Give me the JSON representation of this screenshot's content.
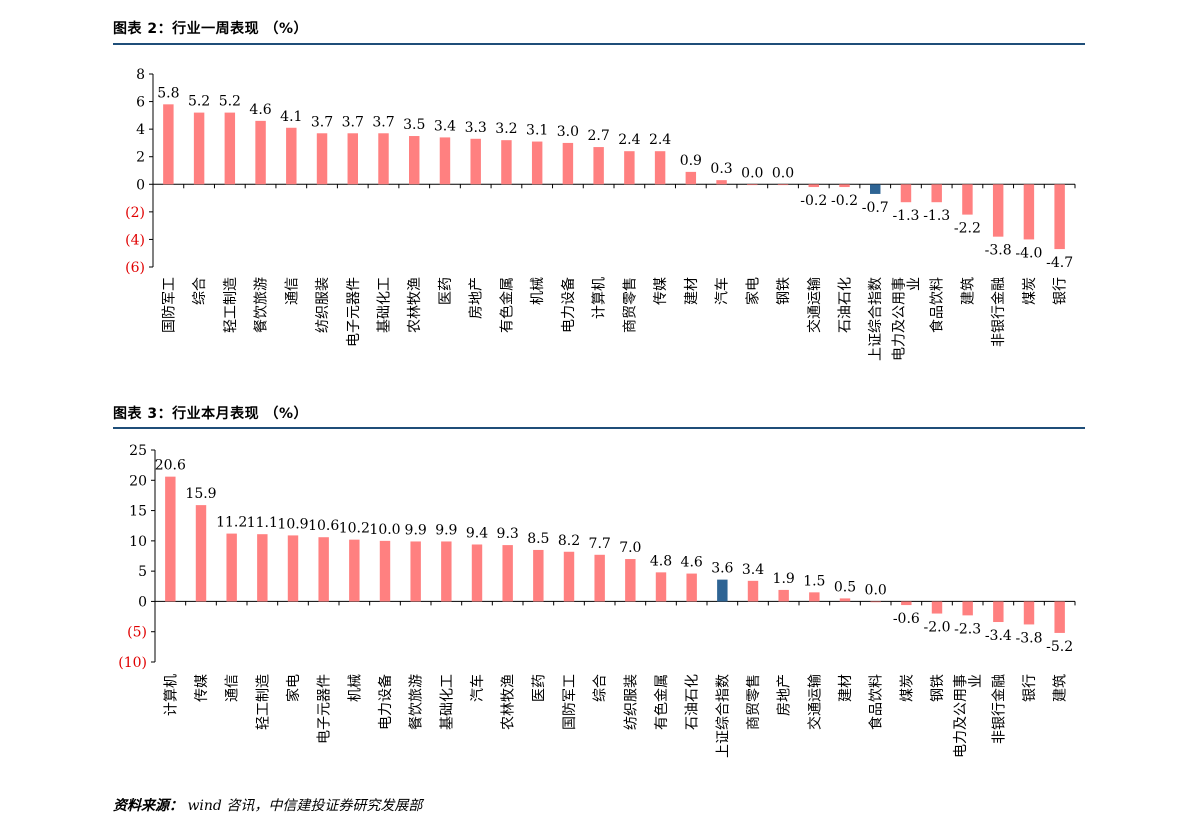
{
  "figure_week": {
    "title": "图表 2：行业一周表现 （%）"
  },
  "figure_month": {
    "title": "图表 3：行业本月表现 （%）"
  },
  "source": {
    "label": "资料来源：",
    "text": "wind 咨讯，中信建投证券研究发展部"
  },
  "colors": {
    "bar": "#ff8080",
    "highlight": "#2e6494",
    "negative_tick": "#e00000",
    "rule": "#1f4e79"
  },
  "chart_data": [
    {
      "type": "bar",
      "title": "图表 2：行业一周表现 （%）",
      "categories": [
        "国防军工",
        "综合",
        "轻工制造",
        "餐饮旅游",
        "通信",
        "纺织服装",
        "电子元器件",
        "基础化工",
        "农林牧渔",
        "医药",
        "房地产",
        "有色金属",
        "机械",
        "电力设备",
        "计算机",
        "商贸零售",
        "传媒",
        "建材",
        "汽车",
        "家电",
        "钢铁",
        "交通运输",
        "石油石化",
        "上证综合指数",
        "电力及公用事业",
        "食品饮料",
        "建筑",
        "非银行金融",
        "煤炭",
        "银行"
      ],
      "values": [
        5.8,
        5.2,
        5.2,
        4.6,
        4.1,
        3.7,
        3.7,
        3.7,
        3.5,
        3.4,
        3.3,
        3.2,
        3.1,
        3.0,
        2.7,
        2.4,
        2.4,
        0.9,
        0.3,
        0.0,
        0.0,
        -0.2,
        -0.2,
        -0.7,
        -1.3,
        -1.3,
        -2.2,
        -3.8,
        -4.0,
        -4.7
      ],
      "value_labels": [
        "5.8",
        "5.2",
        "5.2",
        "4.6",
        "4.1",
        "3.7",
        "3.7",
        "3.7",
        "3.5",
        "3.4",
        "3.3",
        "3.2",
        "3.1",
        "3.0",
        "2.7",
        "2.4",
        "2.4",
        "0.9",
        "0.3",
        "0.0",
        "0.0",
        "-0.2",
        "-0.2",
        "-0.7",
        "-1.3",
        "-1.3",
        "-2.2",
        "-3.8",
        "-4.0",
        "-4.7"
      ],
      "highlight_index": 23,
      "ylim": [
        -6,
        8
      ],
      "yticks": [
        8,
        6,
        4,
        2,
        0,
        -2,
        -4,
        -6
      ],
      "ytick_labels": [
        "8",
        "6",
        "4",
        "2",
        "0",
        "(2)",
        "(4)",
        "(6)"
      ],
      "grid": false,
      "legend": "none"
    },
    {
      "type": "bar",
      "title": "图表 3：行业本月表现 （%）",
      "categories": [
        "计算机",
        "传媒",
        "通信",
        "轻工制造",
        "家电",
        "电子元器件",
        "机械",
        "电力设备",
        "餐饮旅游",
        "基础化工",
        "汽车",
        "农林牧渔",
        "医药",
        "国防军工",
        "综合",
        "纺织服装",
        "有色金属",
        "石油石化",
        "上证综合指数",
        "商贸零售",
        "房地产",
        "交通运输",
        "建材",
        "食品饮料",
        "煤炭",
        "钢铁",
        "电力及公用事业",
        "非银行金融",
        "银行",
        "建筑"
      ],
      "values": [
        20.6,
        15.9,
        11.2,
        11.1,
        10.9,
        10.6,
        10.2,
        10.0,
        9.9,
        9.9,
        9.4,
        9.3,
        8.5,
        8.2,
        7.7,
        7.0,
        4.8,
        4.6,
        3.6,
        3.4,
        1.9,
        1.5,
        0.5,
        0.0,
        -0.6,
        -2.0,
        -2.3,
        -3.4,
        -3.8,
        -5.2
      ],
      "value_labels": [
        "20.6",
        "15.9",
        "11.2",
        "11.1",
        "10.9",
        "10.6",
        "10.2",
        "10.0",
        "9.9",
        "9.9",
        "9.4",
        "9.3",
        "8.5",
        "8.2",
        "7.7",
        "7.0",
        "4.8",
        "4.6",
        "3.6",
        "3.4",
        "1.9",
        "1.5",
        "0.5",
        "0.0",
        "-0.6",
        "-2.0",
        "-2.3",
        "-3.4",
        "-3.8",
        "-5.2"
      ],
      "highlight_index": 18,
      "ylim": [
        -10,
        25
      ],
      "yticks": [
        25,
        20,
        15,
        10,
        5,
        0,
        -5,
        -10
      ],
      "ytick_labels": [
        "25",
        "20",
        "15",
        "10",
        "5",
        "0",
        "(5)",
        "(10)"
      ],
      "grid": false,
      "legend": "none"
    }
  ]
}
